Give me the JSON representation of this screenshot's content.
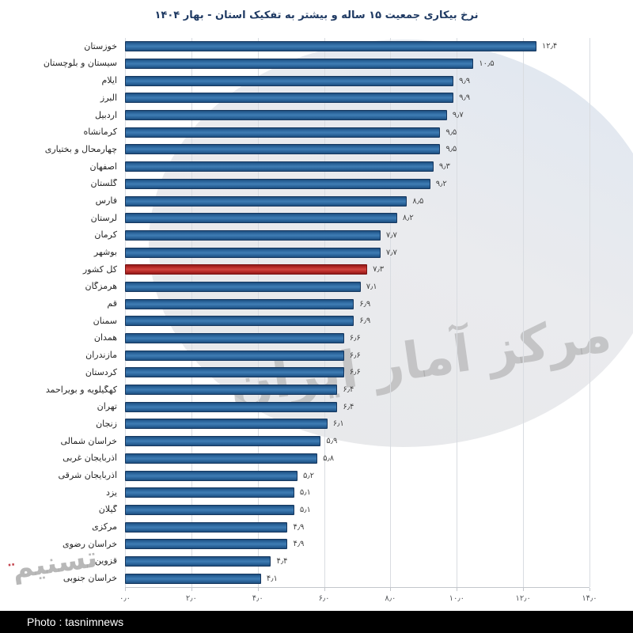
{
  "title": "نرخ بیکاری جمعیت ۱۵ ساله و بیشتر به تفکیک استان - بهار ۱۴۰۴",
  "watermark": {
    "center_text": "مرکز آمار ایران",
    "corner_logo": "تسنیم"
  },
  "footer": {
    "credit": "Photo : tasnimnews"
  },
  "colors": {
    "bar": "#2e6a9f",
    "bar_border": "#16375f",
    "highlight_bar": "#c0302b",
    "highlight_border": "#7a1212",
    "title_text": "#1f3a63",
    "grid": "#d9dce1"
  },
  "chart_data": {
    "type": "bar",
    "orientation": "horizontal",
    "title": "نرخ بیکاری جمعیت ۱۵ ساله و بیشتر به تفکیک استان - بهار ۱۴۰۴",
    "xlabel": "",
    "ylabel": "",
    "xlim": [
      0,
      14
    ],
    "grid": true,
    "x_tick_labels": [
      "۰٫۰",
      "۲٫۰",
      "۴٫۰",
      "۶٫۰",
      "۸٫۰",
      "۱۰٫۰",
      "۱۲٫۰",
      "۱۴٫۰"
    ],
    "x_tick_values": [
      0,
      2,
      4,
      6,
      8,
      10,
      12,
      14
    ],
    "highlight_index": 13,
    "categories": [
      "خوزستان",
      "سیستان و بلوچستان",
      "ایلام",
      "البرز",
      "اردبیل",
      "کرمانشاه",
      "چهارمحال و بختیاری",
      "اصفهان",
      "گلستان",
      "فارس",
      "لرستان",
      "کرمان",
      "بوشهر",
      "کل کشور",
      "هرمزگان",
      "قم",
      "سمنان",
      "همدان",
      "مازندران",
      "کردستان",
      "کهگیلویه و بویراحمد",
      "تهران",
      "زنجان",
      "خراسان شمالی",
      "آذربایجان غربی",
      "آذربایجان شرقی",
      "یزد",
      "گیلان",
      "مرکزی",
      "خراسان رضوی",
      "قزوین",
      "خراسان جنوبی"
    ],
    "values": [
      12.4,
      10.5,
      9.9,
      9.9,
      9.7,
      9.5,
      9.5,
      9.3,
      9.2,
      8.5,
      8.2,
      7.7,
      7.7,
      7.3,
      7.1,
      6.9,
      6.9,
      6.6,
      6.6,
      6.6,
      6.4,
      6.4,
      6.1,
      5.9,
      5.8,
      5.2,
      5.1,
      5.1,
      4.9,
      4.9,
      4.4,
      4.1
    ],
    "value_labels": [
      "۱۲٫۴",
      "۱۰٫۵",
      "۹٫۹",
      "۹٫۹",
      "۹٫۷",
      "۹٫۵",
      "۹٫۵",
      "۹٫۳",
      "۹٫۲",
      "۸٫۵",
      "۸٫۲",
      "۷٫۷",
      "۷٫۷",
      "۷٫۳",
      "۷٫۱",
      "۶٫۹",
      "۶٫۹",
      "۶٫۶",
      "۶٫۶",
      "۶٫۶",
      "۶٫۴",
      "۶٫۴",
      "۶٫۱",
      "۵٫۹",
      "۵٫۸",
      "۵٫۲",
      "۵٫۱",
      "۵٫۱",
      "۴٫۹",
      "۴٫۹",
      "۴٫۴",
      "۴٫۱"
    ]
  }
}
